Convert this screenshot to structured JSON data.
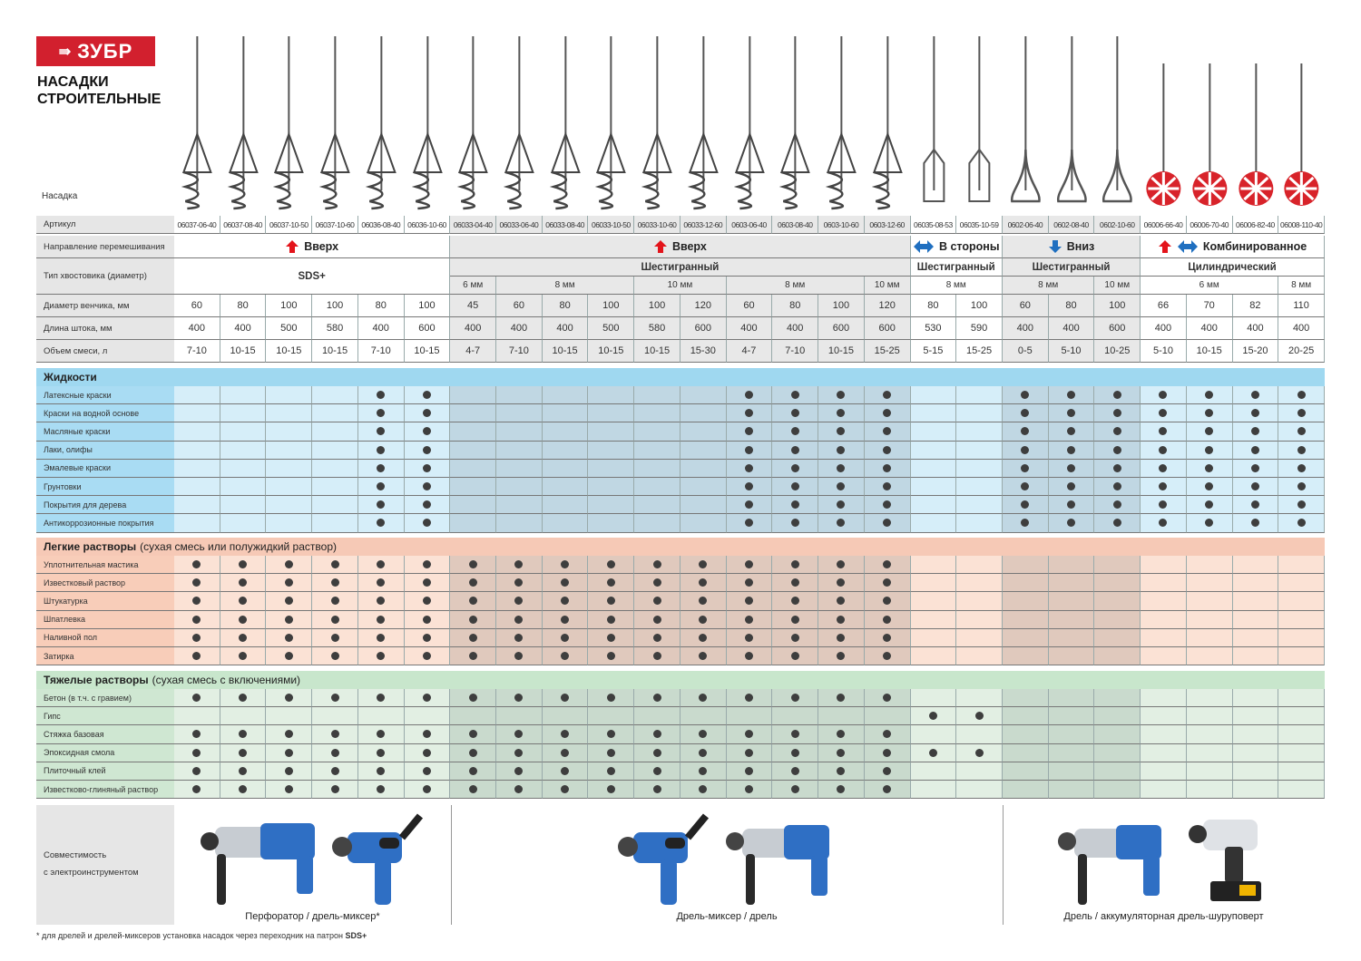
{
  "brand": {
    "logo": "ЗУБР",
    "title_line1": "НАСАДКИ",
    "title_line2": "СТРОИТЕЛЬНЫЕ"
  },
  "row_labels": {
    "image": "Насадка",
    "article": "Артикул",
    "direction": "Направление перемешивания",
    "shank": "Тип хвостовика (диаметр)",
    "diameter": "Диаметр венчика, мм",
    "length": "Длина штока, мм",
    "volume": "Объем смеси, л"
  },
  "colors": {
    "brand_red": "#d2202e",
    "arrow_red": "#e3141b",
    "arrow_blue": "#1f6fc0",
    "liquids": "#9fd8f0",
    "light": "#f6c9b6",
    "heavy": "#c8e6cc",
    "dot": "#3e3e3e"
  },
  "groups": [
    {
      "direction": "Вверх",
      "icons": [
        "arrow-up-red"
      ],
      "shank": "SDS+",
      "shank_sizes": [],
      "count": 6,
      "shaded": false
    },
    {
      "direction": "Вверх",
      "icons": [
        "arrow-up-red"
      ],
      "shank": "Шестигранный",
      "shank_sizes": [
        {
          "label": "6 мм",
          "span": 1
        },
        {
          "label": "8 мм",
          "span": 3
        },
        {
          "label": "10 мм",
          "span": 2
        },
        {
          "label": "8 мм",
          "span": 3
        },
        {
          "label": "10 мм",
          "span": 1
        }
      ],
      "count": 10,
      "shaded": true
    },
    {
      "direction": "В стороны",
      "icons": [
        "arrow-left-right-blue"
      ],
      "shank": "Шестигранный",
      "shank_sizes": [
        {
          "label": "8 мм",
          "span": 2
        }
      ],
      "count": 2,
      "shaded": false
    },
    {
      "direction": "Вниз",
      "icons": [
        "arrow-down-blue"
      ],
      "shank": "Шестигранный",
      "shank_sizes": [
        {
          "label": "8 мм",
          "span": 2
        },
        {
          "label": "10 мм",
          "span": 1
        }
      ],
      "count": 3,
      "shaded": true
    },
    {
      "direction": "Комбинированное",
      "icons": [
        "arrow-up-red",
        "arrow-left-right-blue"
      ],
      "shank": "Цилиндрический",
      "shank_sizes": [
        {
          "label": "6 мм",
          "span": 3
        },
        {
          "label": "8 мм",
          "span": 1
        }
      ],
      "count": 4,
      "shaded": false
    }
  ],
  "products": [
    {
      "article": "06037-06-40",
      "diameter": "60",
      "length": "400",
      "volume": "7-10"
    },
    {
      "article": "06037-08-40",
      "diameter": "80",
      "length": "400",
      "volume": "10-15"
    },
    {
      "article": "06037-10-50",
      "diameter": "100",
      "length": "500",
      "volume": "10-15"
    },
    {
      "article": "06037-10-60",
      "diameter": "100",
      "length": "580",
      "volume": "10-15"
    },
    {
      "article": "06036-08-40",
      "diameter": "80",
      "length": "400",
      "volume": "7-10"
    },
    {
      "article": "06036-10-60",
      "diameter": "100",
      "length": "600",
      "volume": "10-15"
    },
    {
      "article": "06033-04-40",
      "diameter": "45",
      "length": "400",
      "volume": "4-7"
    },
    {
      "article": "06033-06-40",
      "diameter": "60",
      "length": "400",
      "volume": "7-10"
    },
    {
      "article": "06033-08-40",
      "diameter": "80",
      "length": "400",
      "volume": "10-15"
    },
    {
      "article": "06033-10-50",
      "diameter": "100",
      "length": "500",
      "volume": "10-15"
    },
    {
      "article": "06033-10-60",
      "diameter": "100",
      "length": "580",
      "volume": "10-15"
    },
    {
      "article": "06033-12-60",
      "diameter": "120",
      "length": "600",
      "volume": "15-30"
    },
    {
      "article": "0603-06-40",
      "diameter": "60",
      "length": "400",
      "volume": "4-7"
    },
    {
      "article": "0603-08-40",
      "diameter": "80",
      "length": "400",
      "volume": "7-10"
    },
    {
      "article": "0603-10-60",
      "diameter": "100",
      "length": "600",
      "volume": "10-15"
    },
    {
      "article": "0603-12-60",
      "diameter": "120",
      "length": "600",
      "volume": "15-25"
    },
    {
      "article": "06035-08-53",
      "diameter": "80",
      "length": "530",
      "volume": "5-15"
    },
    {
      "article": "06035-10-59",
      "diameter": "100",
      "length": "590",
      "volume": "15-25"
    },
    {
      "article": "0602-06-40",
      "diameter": "60",
      "length": "400",
      "volume": "0-5"
    },
    {
      "article": "0602-08-40",
      "diameter": "80",
      "length": "400",
      "volume": "5-10"
    },
    {
      "article": "0602-10-60",
      "diameter": "100",
      "length": "600",
      "volume": "10-25"
    },
    {
      "article": "06006-66-40",
      "diameter": "66",
      "length": "400",
      "volume": "5-10"
    },
    {
      "article": "06006-70-40",
      "diameter": "70",
      "length": "400",
      "volume": "10-15"
    },
    {
      "article": "06006-82-40",
      "diameter": "82",
      "length": "400",
      "volume": "15-20"
    },
    {
      "article": "06008-110-40",
      "diameter": "110",
      "length": "400",
      "volume": "20-25"
    }
  ],
  "sections": [
    {
      "key": "liquids",
      "title": "Жидкости",
      "subtitle": "",
      "rows": [
        {
          "label": "Латексные краски",
          "cols": [
            5,
            6,
            13,
            14,
            15,
            16,
            19,
            20,
            21,
            22,
            23,
            24,
            25
          ]
        },
        {
          "label": "Краски на водной основе",
          "cols": [
            5,
            6,
            13,
            14,
            15,
            16,
            19,
            20,
            21,
            22,
            23,
            24,
            25
          ]
        },
        {
          "label": "Масляные краски",
          "cols": [
            5,
            6,
            13,
            14,
            15,
            16,
            19,
            20,
            21,
            22,
            23,
            24,
            25
          ]
        },
        {
          "label": "Лаки, олифы",
          "cols": [
            5,
            6,
            13,
            14,
            15,
            16,
            19,
            20,
            21,
            22,
            23,
            24,
            25
          ]
        },
        {
          "label": "Эмалевые краски",
          "cols": [
            5,
            6,
            13,
            14,
            15,
            16,
            19,
            20,
            21,
            22,
            23,
            24,
            25
          ]
        },
        {
          "label": "Грунтовки",
          "cols": [
            5,
            6,
            13,
            14,
            15,
            16,
            19,
            20,
            21,
            22,
            23,
            24,
            25
          ]
        },
        {
          "label": "Покрытия для дерева",
          "cols": [
            5,
            6,
            13,
            14,
            15,
            16,
            19,
            20,
            21,
            22,
            23,
            24,
            25
          ]
        },
        {
          "label": "Антикоррозионные покрытия",
          "cols": [
            5,
            6,
            13,
            14,
            15,
            16,
            19,
            20,
            21,
            22,
            23,
            24,
            25
          ]
        }
      ]
    },
    {
      "key": "light",
      "title": "Легкие растворы",
      "subtitle": "(сухая смесь или полужидкий раствор)",
      "rows": [
        {
          "label": "Уплотнительная мастика",
          "cols": [
            1,
            2,
            3,
            4,
            5,
            6,
            7,
            8,
            9,
            10,
            11,
            12,
            13,
            14,
            15,
            16
          ]
        },
        {
          "label": "Известковый раствор",
          "cols": [
            1,
            2,
            3,
            4,
            5,
            6,
            7,
            8,
            9,
            10,
            11,
            12,
            13,
            14,
            15,
            16
          ]
        },
        {
          "label": "Штукатурка",
          "cols": [
            1,
            2,
            3,
            4,
            5,
            6,
            7,
            8,
            9,
            10,
            11,
            12,
            13,
            14,
            15,
            16
          ]
        },
        {
          "label": "Шпатлевка",
          "cols": [
            1,
            2,
            3,
            4,
            5,
            6,
            7,
            8,
            9,
            10,
            11,
            12,
            13,
            14,
            15,
            16
          ]
        },
        {
          "label": "Наливной пол",
          "cols": [
            1,
            2,
            3,
            4,
            5,
            6,
            7,
            8,
            9,
            10,
            11,
            12,
            13,
            14,
            15,
            16
          ]
        },
        {
          "label": "Затирка",
          "cols": [
            1,
            2,
            3,
            4,
            5,
            6,
            7,
            8,
            9,
            10,
            11,
            12,
            13,
            14,
            15,
            16
          ]
        }
      ]
    },
    {
      "key": "heavy",
      "title": "Тяжелые растворы",
      "subtitle": "(сухая смесь с включениями)",
      "rows": [
        {
          "label": "Бетон (в т.ч. с гравием)",
          "cols": [
            1,
            2,
            3,
            4,
            5,
            6,
            7,
            8,
            9,
            10,
            11,
            12,
            13,
            14,
            15,
            16
          ]
        },
        {
          "label": "Гипс",
          "cols": [
            17,
            18
          ]
        },
        {
          "label": "Стяжка базовая",
          "cols": [
            1,
            2,
            3,
            4,
            5,
            6,
            7,
            8,
            9,
            10,
            11,
            12,
            13,
            14,
            15,
            16
          ]
        },
        {
          "label": "Эпоксидная смола",
          "cols": [
            1,
            2,
            3,
            4,
            5,
            6,
            7,
            8,
            9,
            10,
            11,
            12,
            13,
            14,
            15,
            16,
            17,
            18
          ]
        },
        {
          "label": "Плиточный клей",
          "cols": [
            1,
            2,
            3,
            4,
            5,
            6,
            7,
            8,
            9,
            10,
            11,
            12,
            13,
            14,
            15,
            16
          ]
        },
        {
          "label": "Известково-глиняный раствор",
          "cols": [
            1,
            2,
            3,
            4,
            5,
            6,
            7,
            8,
            9,
            10,
            11,
            12,
            13,
            14,
            15,
            16
          ]
        }
      ]
    }
  ],
  "compatibility": {
    "label_line1": "Совместимость",
    "label_line2": "с электроинструментом",
    "panels": [
      {
        "caption": "Перфоратор / дрель-миксер*",
        "tools": [
          "rotary-hammer",
          "drill-mixer"
        ]
      },
      {
        "caption": "Дрель-миксер / дрель",
        "tools": [
          "drill-mixer",
          "impact-drill"
        ]
      },
      {
        "caption": "Дрель / аккумуляторная дрель-шуруповерт",
        "tools": [
          "impact-drill",
          "cordless-drill"
        ]
      }
    ]
  },
  "footnote": {
    "text": "* для дрелей и дрелей-миксеров установка насадок через переходник на патрон ",
    "bold": "SDS+"
  }
}
